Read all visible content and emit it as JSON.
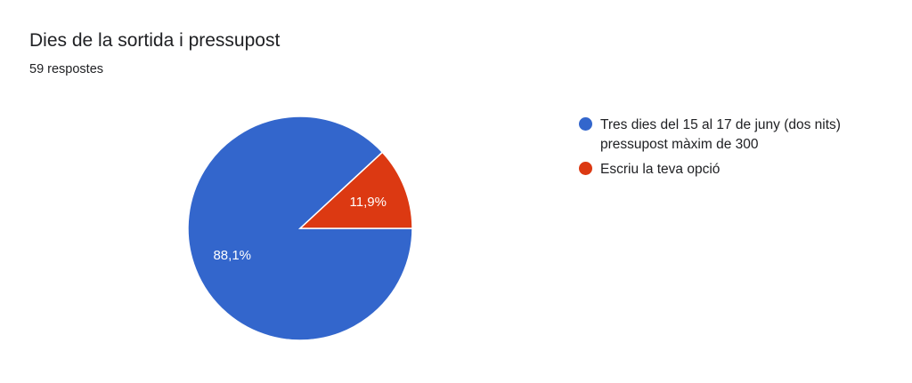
{
  "chart_data": {
    "type": "pie",
    "title": "Dies de la sortida i pressupost",
    "subtitle": "59 respostes",
    "start_angle_deg": 90,
    "legend_position": "right",
    "slices": [
      {
        "label": "Tres dies del 15 al 17 de juny (dos nits) pressupost màxim de 300",
        "value": 88.1,
        "display": "88,1%",
        "color": "#3366cc"
      },
      {
        "label": "Escriu la teva opció",
        "value": 11.9,
        "display": "11,9%",
        "color": "#dc3912"
      }
    ]
  }
}
